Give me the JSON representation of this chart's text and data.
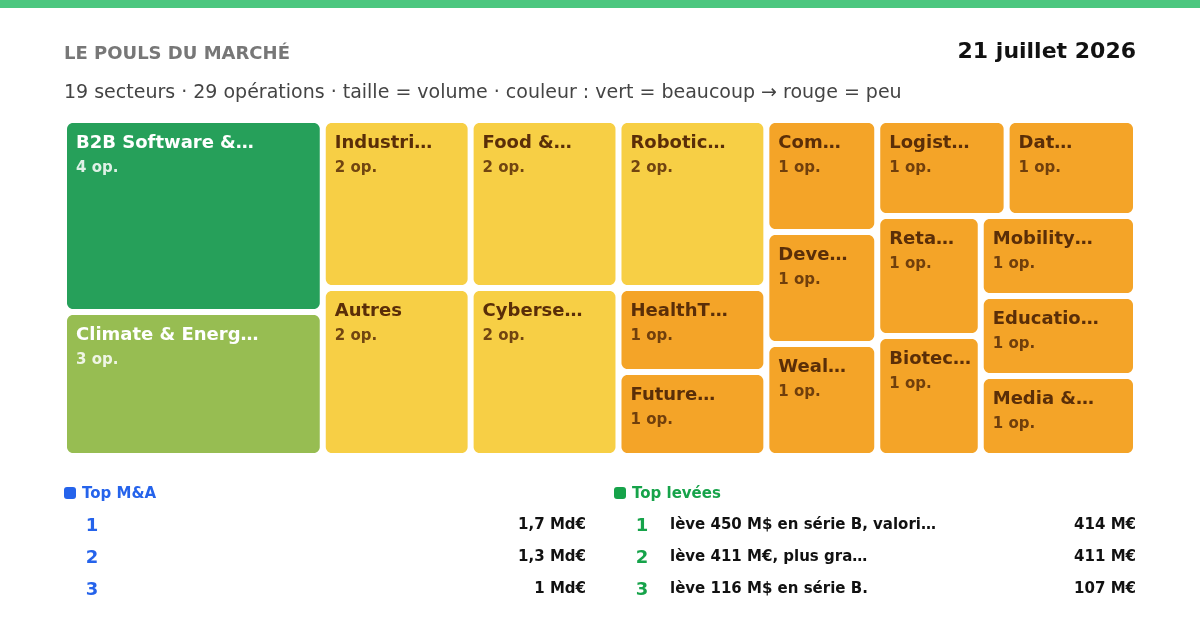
{
  "chart_data": {
    "type": "other",
    "title": "LE POULS DU MARCHÉ",
    "subtitle": "19 secteurs · 29 opérations · taille = volume · couleur : vert = beaucoup → rouge = peu",
    "categories": [
      "B2B Software &…",
      "Climate & Energ…",
      "Industri…",
      "Autres",
      "Food &…",
      "Cyberse…",
      "Robotic…",
      "HealthT…",
      "Future…",
      "Com…",
      "Deve…",
      "Weal…",
      "Logist…",
      "Dat…",
      "Reta…",
      "Biotec…",
      "Mobility…",
      "Educatio…",
      "Media &…"
    ],
    "values": [
      4,
      3,
      2,
      2,
      2,
      2,
      2,
      1,
      1,
      1,
      1,
      1,
      1,
      1,
      1,
      1,
      1,
      1,
      1
    ],
    "value_labels": [
      "4 op.",
      "3 op.",
      "2 op.",
      "2 op.",
      "2 op.",
      "2 op.",
      "2 op.",
      "1 op.",
      "1 op.",
      "1 op.",
      "1 op.",
      "1 op.",
      "1 op.",
      "1 op.",
      "1 op.",
      "1 op.",
      "1 op.",
      "1 op.",
      "1 op."
    ],
    "colors": [
      "#26a05a",
      "#97bd52",
      "#f7cf45",
      "#f7cf45",
      "#f7cf45",
      "#f7cf45",
      "#f7cf45",
      "#f4a428",
      "#f4a428",
      "#f4a428",
      "#f4a428",
      "#f4a428",
      "#f4a428",
      "#f4a428",
      "#f4a428",
      "#f4a428",
      "#f4a428",
      "#f4a428",
      "#f4a428"
    ],
    "annotations": [
      "21 juillet 2026",
      "Top M&A",
      "1",
      "1,7 Md€",
      "2",
      "1,3 Md€",
      "3",
      "1 Md€",
      "Top levées",
      "1",
      "lève 450 M$ en série B, valori…",
      "414 M€",
      "2",
      "lève 411 M€, plus gra…",
      "411 M€",
      "3",
      "lève 116 M$ en série B.",
      "107 M€"
    ]
  }
}
